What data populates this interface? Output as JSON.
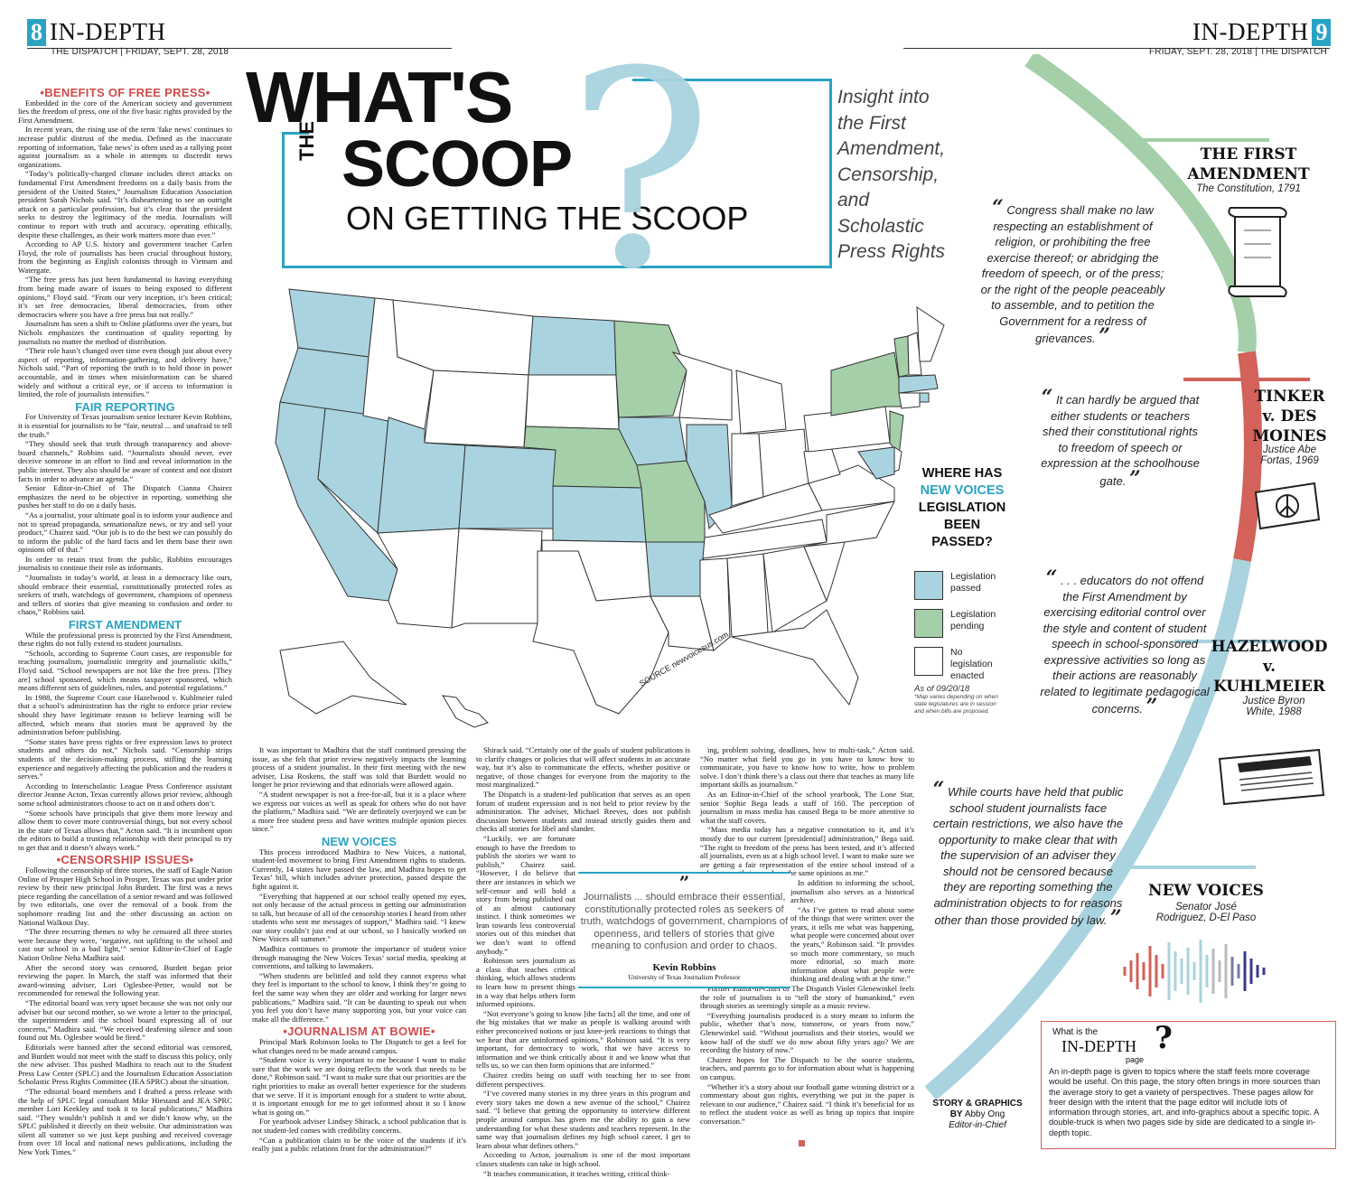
{
  "header_left": {
    "page_num": "8",
    "section": "IN-DEPTH",
    "paper": "THE DISPATCH",
    "date": "FRIDAY, SEPT. 28, 2018"
  },
  "header_right": {
    "page_num": "9",
    "section": "IN-DEPTH",
    "paper": "THE DISPATCH",
    "date": "FRIDAY, SEPT. 28, 2018"
  },
  "title": {
    "line1": "WHAT'S",
    "the": "THE",
    "line2": "SCOOP",
    "line3": "ON GETTING THE SCOOP"
  },
  "subtitle": "Insight into the First Amendment, Censorship, and Scholastic Press Rights",
  "colors": {
    "blue": "#a9d3df",
    "green": "#a4cfa9",
    "red": "#d2625a",
    "accent": "#2aa3c2"
  },
  "col1": {
    "h1": "•BENEFITS OF FREE PRESS•",
    "p1": "Embedded in the core of the American society and government lies the freedom of press, one of the five basic rights provided by the First Amendment.",
    "p2": "In recent years, the rising use of the term 'fake news' continues to increase public distrust of the media. Defined as the inaccurate reporting of information, 'fake news' is often used as a rallying point against journalism as a whole in attempts to discredit news organizations.",
    "p3": "“Today’s politically-charged climate includes direct attacks on fundamental First Amendment freedoms on a daily basis from the president of the United States,” Journalism Education Association president Sarah Nichols said. “It’s disheartening to see an outright attack on a particular profession, but it’s clear that the president seeks to destroy the legitimacy of the media. Journalists will continue to report with truth and accuracy, operating ethically, despite these challenges, as their work matters more than ever.”",
    "p4": "According to AP U.S. history and government teacher Carlen Floyd, the role of journalists has been crucial throughout history, from the beginning as English colonists through to Vietnam and Watergate.",
    "p5": "“The free press has just been fundamental to having everything from being made aware of issues to being exposed to different opinions,” Floyd said. “From our very inception, it’s been critical; it’s set free democracies, liberal democracies, from other democracies where you have a free press but not really.”",
    "p6": "Journalism has seen a shift to Online platforms over the years, but Nichols emphasizes the continuation of quality reporting by journalists no matter the method of distribution.",
    "p7": "“Their role hasn’t changed over time even though just about every aspect of reporting, information-gathering, and delivery have,” Nichols said. “Part of reporting the truth is to hold those in power accountable, and in times when misinformation can be shared widely and without a critical eye, or if access to information is limited, the role of journalists intensifies.”",
    "h2": "FAIR REPORTING",
    "p8": "For University of Texas journalism senior lecturer Kevin Robbins, it is essential for journalists to be “fair, neutral ... and unafraid to tell the truth.”",
    "p9": "“They should seek that truth through transparency and above-board channels,” Robbins said. “Journalists should never, ever deceive someone in an effort to find and reveal information in the public interest. They also should be aware of context and not distort facts in order to advance an agenda.”",
    "p10": "Senior Editor-in-Chief of The Dispatch Cianna Chairez emphasizes the need to be objective in reporting, something she pushes her staff to do on a daily basis.",
    "p11": "“As a journalist, your ultimate goal is to inform your audience and not to spread propaganda, sensationalize news, or try and sell your product,” Chairez said. “Our job is to do the best we can possibly do to inform the public of the hard facts and let them base their own opinions off of that.”",
    "p12": "In order to retain trust from the public, Robbins encourages journalists to continue their role as informants.",
    "p13": "“Journalists in today’s world, at least in a democracy like ours, should embrace their essential, constitutionally protected roles as seekers of truth, watchdogs of government, champions of openness and tellers of stories that give meaning to confusion and order to chaos,” Robbins said.",
    "h3": "FIRST AMENDMENT",
    "p14": "While the professional press is protected by the First Amendment, these rights do not fully extend to student journalists.",
    "p15": "“Schools, according to Supreme Court cases, are responsible for teaching journalism, journalistic integrity and journalistic skills,” Floyd said. “School newspapers are not like the free press. [They are] school sponsored, which means taxpayer sponsored, which means different sets of guidelines, rules, and potential regulations.”",
    "p16": "In 1988, the Supreme Court case Hazelwood v. Kuhlmeier ruled that a school’s administration has the right to enforce prior review should they have legitimate reason to believe learning will be affected, which means that stories must be approved by the administration before publishing.",
    "p17": "“Some states have press rights or free expression laws to protect students and others do not,” Nichols said. “Censorship strips students of the decision-making process, stifling the learning experience and negatively affecting the publication and the readers it serves.”",
    "p18": "According to Interscholastic League Press Conference assistant director Jeanne Acton, Texas currently allows prior review, although some school administrators choose to act on it and others don’t.",
    "p19": "“Some schools have principals that give them more leeway and allow them to cover more controversial things, but not every school in the state of Texas allows that,” Acton said. “It is incumbent upon the editors to build a trusting relationship with their principal to try to get that and it doesn’t always work.”",
    "h4": "•CENSORSHIP ISSUES•",
    "p20": "Following the censorship of three stories, the staff of Eagle Nation Online of Prosper High School in Prosper, Texas was put under prior review by their new principal John Burdett. The first was a news piece regarding the cancellation of a senior reward and was followed by two editorials, one over the removal of a book from the sophomore reading list and the other discussing an action on National Walkout Day.",
    "p21": "“The three recurring themes to why he censored all three stories were because they were, ‘negative, not uplifting to the school and cast our school in a bad light,’” senior Editor-in-Chief of Eagle Nation Online Neha Madhira said.",
    "p22": "After the second story was censored, Burdett began prior reviewing the paper. In March, the staff was informed that their award-winning adviser, Lori Oglesbee-Petter, would not be recommended for renewal the following year.",
    "p23": "“The editorial board was very upset because she was not only our adviser but our second mother, so we wrote a letter to the principal, the superintendent and the school board expressing all of our concerns,” Madhira said. “We received deafening silence and soon found out Ms. Oglesbee would be fired.”",
    "p24": "Editorials were banned after the second editorial was censored, and Burdett would not meet with the staff to discuss this policy, only the new adviser. This pushed Madhira to reach out to the Student Press Law Center (SPLC) and the Journalism Education Association Scholastic Press Rights Committee (JEA SPRC) about the situation.",
    "p25": "“The editorial board members and I drafted a press release with the help of SPLC legal consultant Mike Hiestand and JEA SPRC member Lori Keekley and took it to local publications,” Madhira said. “They wouldn’t publish it and we didn’t know why, so the SPLC published it directly on their website. Our administration was silent all summer so we just kept pushing and received coverage from over 18 local and national news publications, including the New York Times.”"
  },
  "col2": {
    "p1": "It was important to Madhira that the staff continued pressing the issue, as she felt that prior review negatively impacts the learning process of a student journalist. In their first meeting with the new adviser, Lisa Roskens, the staff was told that Burdett would no longer be prior reviewing and that editorials were allowed again.",
    "p2": "“A student newspaper is not a free-for-all, but it is a place where we express our voices as well as speak for others who do not have the platform,” Madhira said. “We are definitely overjoyed we can be a more free student press and have written multiple opinion pieces since.”",
    "h1": "NEW VOICES",
    "p3": "This process introduced Madhira to New Voices, a national, student-led movement to bring First Amendment rights to students. Currently, 14 states have passed the law, and Madhira hopes to get Texas’ bill, which includes adviser protection, passed despite the fight against it.",
    "p4": "“Everything that happened at our school really opened my eyes, not only because of the actual process in getting our administration to talk, but because of all of the censorship stories I heard from other students who sent me messages of support,” Madhira said. “I knew our story couldn’t just end at our school, so I basically worked on New Voices all summer.”",
    "p5": "Madhira continues to promote the importance of student voice through managing the New Voices Texas’ social media, speaking at conventions, and talking to lawmakers.",
    "p6": "“When students are belittled and told they cannot express what they feel is important to the school to know, I think they’re going to feel the same way when they are older and working for larger news publications,” Madhira said. “It can be daunting to speak out when you feel you don’t have many supporting you, but your voice can make all the difference.”",
    "h2": "•JOURNALISM AT BOWIE•",
    "p7": "Principal Mark Robinson looks to The Dispatch to get a feel for what changes need to be made around campus.",
    "p8": "“Student voice is very important to me because I want to make sure that the work we are doing reflects the work that needs to be done,” Robinson said. “I want to make sure that our priorities are the right priorities to make an overall better experience for the students that we serve. If it is important enough for a student to write about, it is important enough for me to get informed about it so I know what is going on.”",
    "p9": "For yearbook adviser Lindsey Shirack, a school publication that is not student-led comes with credibility concerns.",
    "p10": "“Can a publication claim to be the voice of the students if it’s really just a public relations front for the administration?”"
  },
  "col3": {
    "p1": "Shirack said. “Certainly one of the goals of student publications is to clarify changes or policies that will affect students in an accurate way, but it’s also to communicate the effects, whether positive or negative, of those changes for everyone from the majority to the most marginalized.”",
    "p2": "The Dispatch is a student-led publication that serves as an open forum of student expression and is not held to prior review by the administration. The adviser, Michael Reeves, does not publish discussion between students and instead strictly guides them and checks all stories for libel and slander.",
    "p3": "“Luckily, we are fortunate enough to have the freedom to publish the stories we want to publish,” Chairez said. “However, I do believe that there are instances in which we self-censor and will hold a story from being published out of an almost cautionary instinct. I think sometimes we lean towards less controversial stories out of this mindset that we don’t want to offend anybody.”",
    "p4": "Robinson sees journalism as a class that teaches critical thinking, which allows students to learn how to present things in a way that helps others form informed opinions.",
    "p5": "“Not everyone’s going to know [the facts] all the time, and one of the big mistakes that we make as people is walking around with either preconceived notions or just knee-jerk reactions to things that we hear that are uninformed opinions,” Robinson said. “It is very important, for democracy to work, that we have access to information and we think critically about it and we know what that tells us, so we can then form opinions that are informed.”",
    "p6": "Chairez credits being on staff with teaching her to see from different perspectives.",
    "p7": "“I’ve covered many stories in my three years in this program and every story takes me down a new avenue of the school,” Chairez said. “I believe that getting the opportunity to interview different people around campus has given me the ability to gain a new understanding for what these students and teachers represent. In the same way that journalism defines my high school career, I get to learn about what defines others.”",
    "p8": "According to Acton, journalism is one of the most important classes students can take in high school.",
    "p9": "“It teaches communication, it teaches writing, critical think-"
  },
  "col4": {
    "p1": "ing, problem solving, deadlines, how to multi-task,” Acton said. “No matter what field you go in you have to know how to communicate, you have to know how to write, how to problem solve. I don’t think there’s a class out there that teaches as many life important skills as journalism.”",
    "p2": "As an Editor-in-Chief of the school yearbook, The Lone Star, senior Sophie Bega leads a staff of 160. The perception of journalism in mass media has caused Bega to be more attentive to what the staff covers.",
    "p3": "“Mass media today has a negative connotation to it, and it’s mostly due to our current [presidential] administration,” Bega said. “The right to freedom of the press has been tested, and it’s affected all journalists, even us at a high school level. I want to make sure we are getting a fair representation of the entire school instead of a select group that may share the same opinions as me.”",
    "p4": "In addition to informing the school, journalism also serves as a historical archive.",
    "p5": "“As I’ve gotten to read about some of the things that were written over the years, it tells me what was happening, what people were concerned about over the years,” Robinson said. “It provides so much more commentary, so much more editorial, so much more information about what people were thinking and dealing with at the time.”",
    "p6": "Former Editor-in-Chief of The Dispatch Violet Glenewinkel feels the role of journalists is to “tell the story of humankind,” even through stories as seemingly simple as a music review.",
    "p7": "“Everything journalists produced is a story meant to inform the public, whether that’s now, tomorrow, or years from now,” Glenewinkel said. “Without journalists and their stories, would we know half of the stuff we do now about fifty years ago? We are recording the history of now.”",
    "p8": "Chairez hopes for The Dispatch to be the source students, teachers, and parents go to for information about what is happening on campus.",
    "p9": "“Whether it’s a story about our football game winning district or a commentary about gun rights, everything we put in the paper is relevant to our audience,” Chairez said. “I think it’s beneficial for us to reflect the student voice as well as bring up topics that inspire conversation.”"
  },
  "pullquote": {
    "text": "Journalists ... should embrace their essential, constitutionally protected roles as seekers of truth, watchdogs of government, champions of openness, and tellers of stories that give meaning to confusion and order to chaos.",
    "name": "Kevin Robbins",
    "role": "University of Texas Journalism Professor"
  },
  "map": {
    "question": [
      "WHERE HAS",
      "NEW VOICES",
      "LEGISLATION",
      "BEEN",
      "PASSED?"
    ],
    "legend": [
      {
        "label": "Legislation passed",
        "color": "#a9d3df"
      },
      {
        "label": "Legislation pending",
        "color": "#a4cfa9"
      },
      {
        "label": "No legislation enacted",
        "color": "#ffffff"
      }
    ],
    "asof": "As of 09/20/18",
    "note": "*Map varies depending on when state legislatures are in session and when bills are proposed.",
    "source": "SOURCE newvoicesus.com"
  },
  "cases": {
    "first": {
      "title1": "THE FIRST",
      "title2": "AMENDMENT",
      "sub": "The Constitution, 1791",
      "quote": "Congress shall make no law respecting an establishment of religion, or prohibiting the free exercise thereof; or abridging the freedom of speech, or of the press; or the right of the people peaceably to assemble, and to petition the Government for a redress of grievances."
    },
    "tinker": {
      "title1": "TINKER",
      "title2": "v. DES",
      "title3": "MOINES",
      "sub1": "Justice Abe",
      "sub2": "Fortas, 1969",
      "quote": "It can hardly be argued that either students or teachers shed their constitutional rights to freedom of speech or expression at the schoolhouse gate."
    },
    "hazelwood": {
      "title1": "HAZELWOOD",
      "title2": "v.",
      "title3": "KUHLMEIER",
      "sub1": "Justice Byron",
      "sub2": "White, 1988",
      "quote": ". . . educators do not offend the First Amendment by exercising editorial control over the style and content of student speech in school-sponsored expressive activities so long as their actions are reasonably related to legitimate pedagogical concerns."
    },
    "newvoices": {
      "title": "NEW VOICES",
      "sub1": "Senator José",
      "sub2": "Rodriguez, D-El Paso",
      "quote": "While courts have held that public school student journalists face certain restrictions, we also have the opportunity to make clear that with the supervision of an adviser they should not be censored because they are reporting something the administration objects to for reasons other than those provided by law."
    }
  },
  "byline": {
    "line1": "STORY & GRAPHICS",
    "by": "BY",
    "name": "Abby Ong",
    "role": "Editor-in-Chief"
  },
  "indepth_box": {
    "what": "What is the",
    "title": "IN-DEPTH",
    "page": "page",
    "text": "An in-depth page is given to topics where the staff feels more coverage would be useful. On this page, the story often brings in more sources than the average story to get a variety of perspectives. These pages allow for freer design with the intent that the page editor will include lots of information through stories, art, and info-graphics about a specific topic. A double-truck is when two pages side by side are dedicated to a single in-depth topic."
  }
}
